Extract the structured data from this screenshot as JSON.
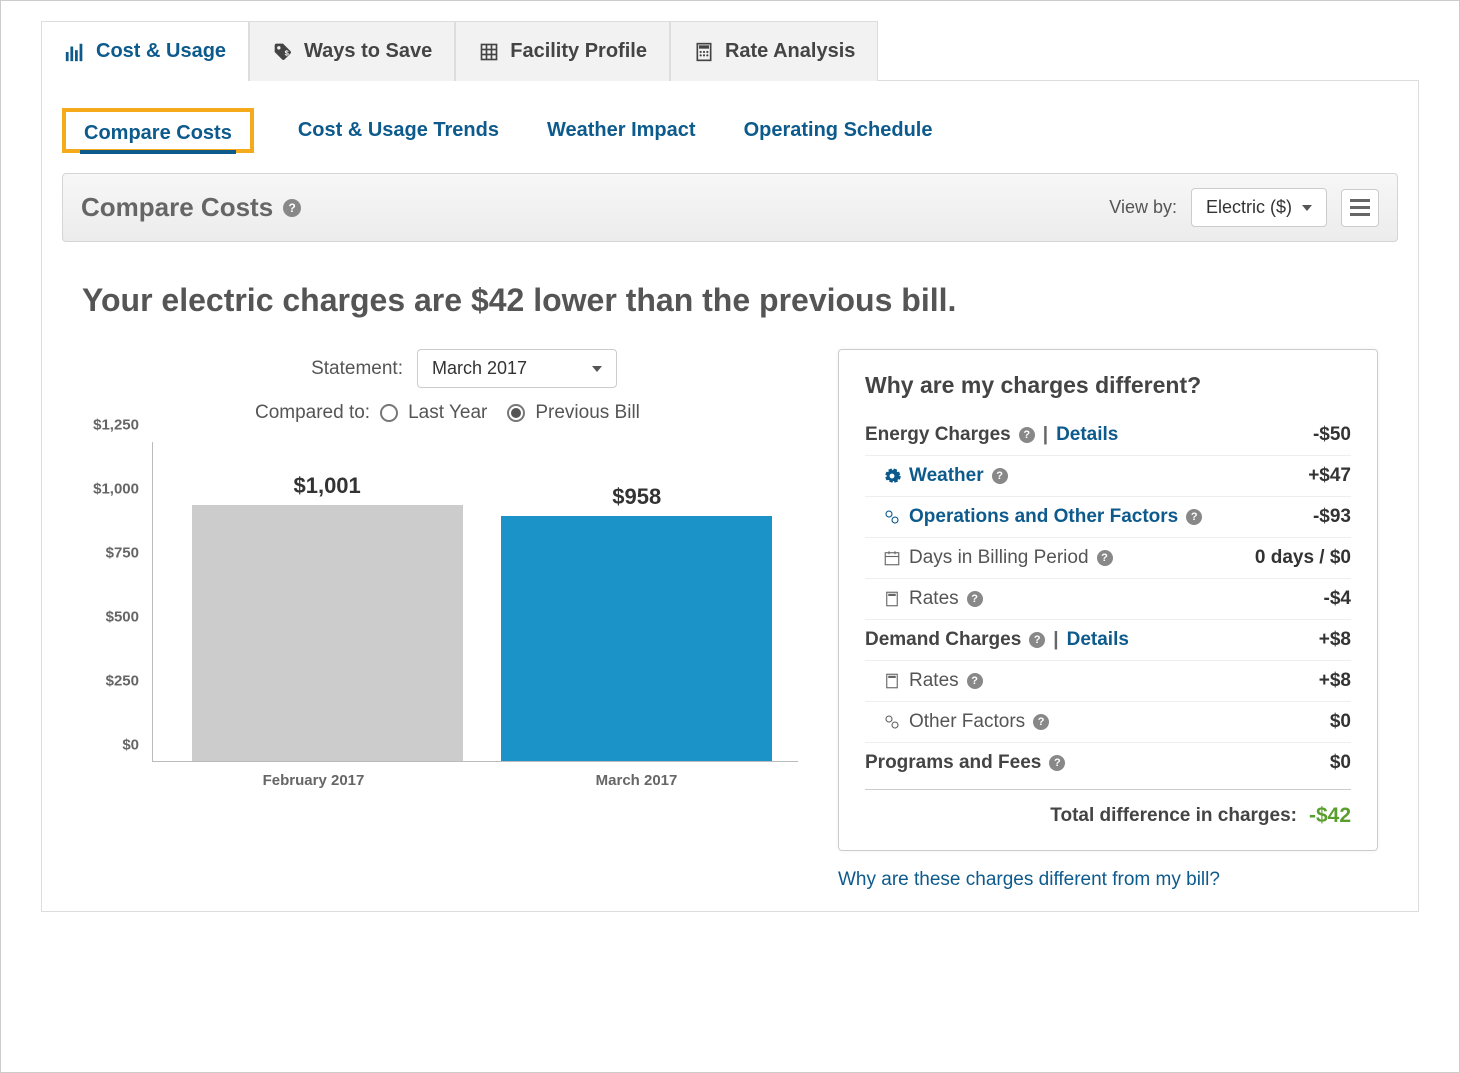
{
  "top_tabs": {
    "cost_usage": "Cost & Usage",
    "ways_to_save": "Ways to Save",
    "facility_profile": "Facility Profile",
    "rate_analysis": "Rate Analysis"
  },
  "sub_tabs": {
    "compare_costs": "Compare Costs",
    "trends": "Cost & Usage Trends",
    "weather": "Weather Impact",
    "schedule": "Operating Schedule"
  },
  "toolbar": {
    "title": "Compare Costs",
    "view_by_label": "View by:",
    "view_by_value": "Electric ($)"
  },
  "headline": "Your electric charges are $42 lower than the previous bill.",
  "selectors": {
    "statement_label": "Statement:",
    "statement_value": "March 2017",
    "compared_label": "Compared to:",
    "option_last_year": "Last Year",
    "option_previous_bill": "Previous Bill"
  },
  "chart": {
    "type": "bar",
    "ylim": [
      0,
      1250
    ],
    "ytick_step": 250,
    "yticks": [
      "$0",
      "$250",
      "$500",
      "$750",
      "$1,000",
      "$1,250"
    ],
    "bar_width_pct": 42,
    "plot_area_h": 320,
    "bars": [
      {
        "label": "February 2017",
        "value_display": "$1,001",
        "value": 1001,
        "color": "#cccccc",
        "left_pct": 6
      },
      {
        "label": "March 2017",
        "value_display": "$958",
        "value": 958,
        "color": "#1c93c8",
        "left_pct": 54
      }
    ]
  },
  "details": {
    "title": "Why are my charges different?",
    "energy_charges_label": "Energy Charges",
    "details_link": "Details",
    "energy_charges_value": "-$50",
    "weather_label": "Weather",
    "weather_value": "+$47",
    "operations_label": "Operations and Other Factors",
    "operations_value": "-$93",
    "days_label": "Days in Billing Period",
    "days_value": "0 days / $0",
    "rates1_label": "Rates",
    "rates1_value": "-$4",
    "demand_label": "Demand Charges",
    "demand_value": "+$8",
    "rates2_label": "Rates",
    "rates2_value": "+$8",
    "other_factors_label": "Other Factors",
    "other_factors_value": "$0",
    "programs_label": "Programs and Fees",
    "programs_value": "$0",
    "total_label": "Total difference in charges:",
    "total_value": "-$42"
  },
  "footer_link": "Why are these charges different from my bill?",
  "colors": {
    "accent": "#0d5a8c",
    "highlight_border": "#f5aa1c",
    "positive": "#5a9e2e"
  }
}
